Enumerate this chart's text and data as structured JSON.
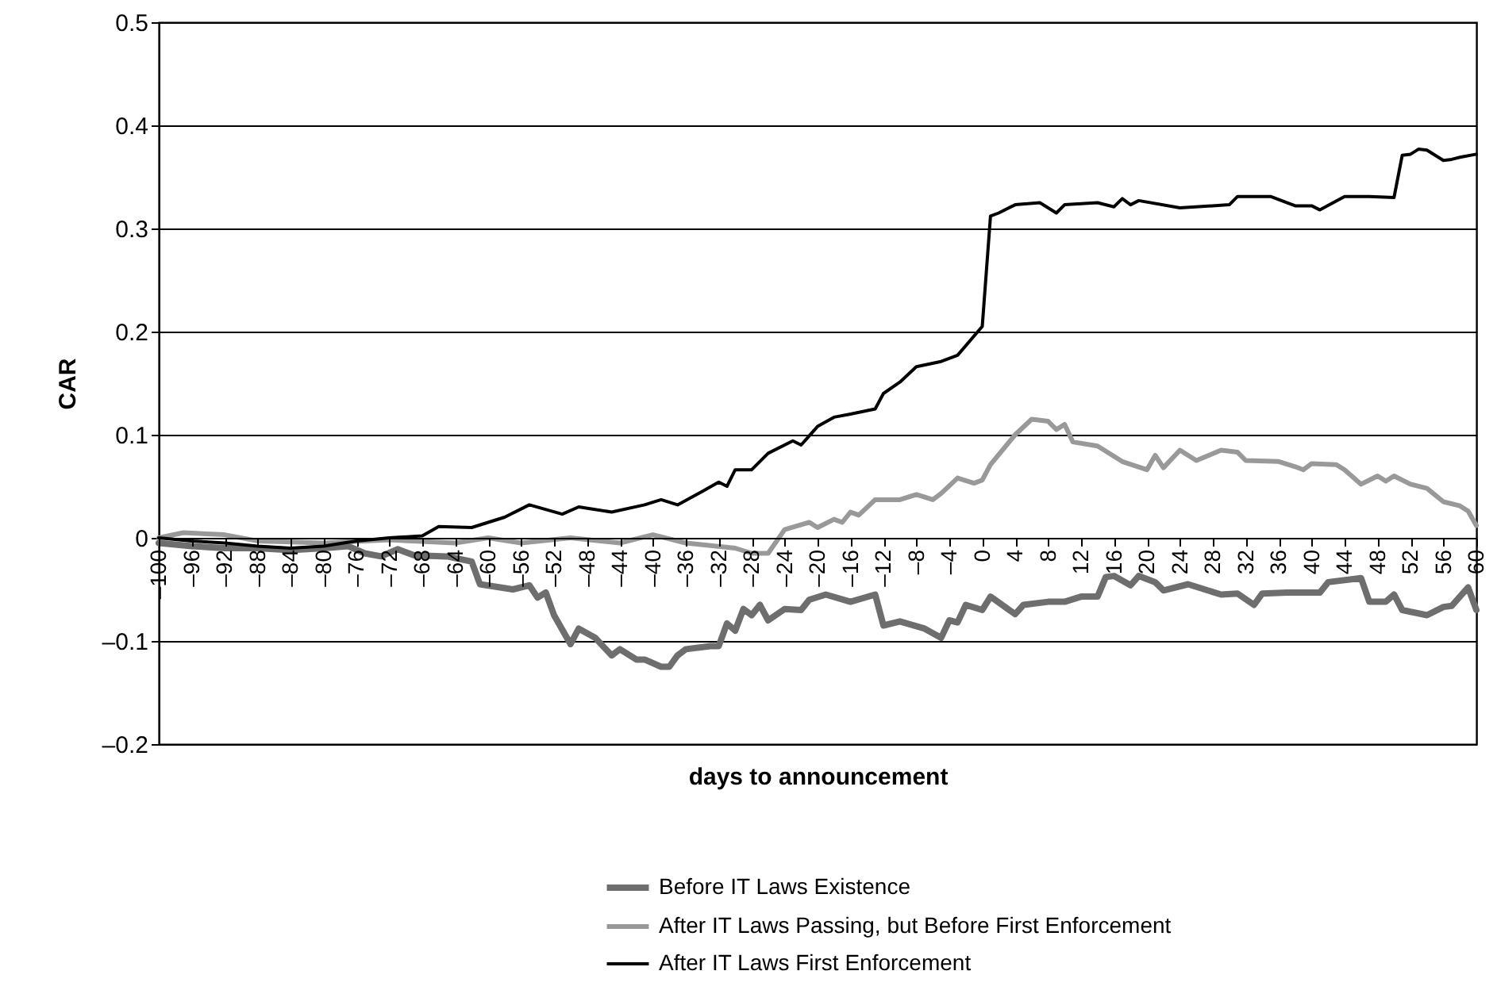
{
  "chart_data": {
    "type": "line",
    "xlabel": "days to announcement",
    "ylabel": "CAR",
    "xlim": [
      -100,
      60
    ],
    "ylim": [
      -0.2,
      0.5
    ],
    "xticks": [
      {
        "value": -100,
        "label": "–100"
      },
      {
        "value": -96,
        "label": "–96"
      },
      {
        "value": -92,
        "label": "–92"
      },
      {
        "value": -88,
        "label": "–88"
      },
      {
        "value": -84,
        "label": "–84"
      },
      {
        "value": -80,
        "label": "–80"
      },
      {
        "value": -76,
        "label": "–76"
      },
      {
        "value": -72,
        "label": "–72"
      },
      {
        "value": -68,
        "label": "–68"
      },
      {
        "value": -64,
        "label": "–64"
      },
      {
        "value": -60,
        "label": "–60"
      },
      {
        "value": -56,
        "label": "–56"
      },
      {
        "value": -52,
        "label": "–52"
      },
      {
        "value": -48,
        "label": "–48"
      },
      {
        "value": -44,
        "label": "–44"
      },
      {
        "value": -40,
        "label": "–40"
      },
      {
        "value": -36,
        "label": "–36"
      },
      {
        "value": -32,
        "label": "–32"
      },
      {
        "value": -28,
        "label": "–28"
      },
      {
        "value": -24,
        "label": "–24"
      },
      {
        "value": -20,
        "label": "–20"
      },
      {
        "value": -16,
        "label": "–16"
      },
      {
        "value": -12,
        "label": "–12"
      },
      {
        "value": -8,
        "label": "–8"
      },
      {
        "value": -4,
        "label": "–4"
      },
      0,
      4,
      8,
      12,
      16,
      20,
      24,
      28,
      32,
      36,
      40,
      44,
      48,
      52,
      56,
      60
    ],
    "yticks": [
      {
        "value": -0.2,
        "label": "–0.2"
      },
      {
        "value": -0.1,
        "label": "–0.1"
      },
      0,
      0.1,
      0.2,
      0.3,
      0.4,
      0.5
    ],
    "grid": "y",
    "legend": "bottom",
    "marker": "none",
    "line_style": "solid",
    "series": [
      {
        "name": "Before IT Laws Existence",
        "color": "#6e6e6e",
        "x": [
          -100,
          -96,
          -92,
          -88,
          -84,
          -80,
          -77,
          -75,
          -73,
          -71,
          -69,
          -65,
          -62,
          -61,
          -57,
          -55,
          -54,
          -53,
          -52,
          -50,
          -49,
          -47,
          -45,
          -44,
          -42,
          -41,
          -39,
          -38,
          -37,
          -36,
          -33,
          -32,
          -31,
          -30,
          -29,
          -28,
          -27,
          -26,
          -24,
          -22,
          -21,
          -19,
          -16,
          -13,
          -12,
          -10,
          -7,
          -5,
          -4,
          -3,
          -2,
          0,
          1,
          4,
          5,
          8,
          10,
          12,
          14,
          15,
          16,
          18,
          19,
          21,
          22,
          25,
          29,
          31,
          33,
          34,
          37,
          41,
          42,
          46,
          47,
          49,
          50,
          51,
          54,
          56,
          57,
          59,
          60
        ],
        "values": [
          -0.005,
          -0.008,
          -0.01,
          -0.01,
          -0.012,
          -0.01,
          -0.008,
          -0.015,
          -0.018,
          -0.011,
          -0.017,
          -0.018,
          -0.023,
          -0.045,
          -0.05,
          -0.046,
          -0.058,
          -0.053,
          -0.075,
          -0.103,
          -0.088,
          -0.097,
          -0.114,
          -0.108,
          -0.118,
          -0.118,
          -0.125,
          -0.125,
          -0.114,
          -0.108,
          -0.105,
          -0.105,
          -0.083,
          -0.09,
          -0.069,
          -0.075,
          -0.065,
          -0.08,
          -0.069,
          -0.07,
          -0.06,
          -0.055,
          -0.062,
          -0.055,
          -0.085,
          -0.081,
          -0.088,
          -0.097,
          -0.08,
          -0.082,
          -0.065,
          -0.07,
          -0.057,
          -0.074,
          -0.065,
          -0.062,
          -0.062,
          -0.057,
          -0.057,
          -0.038,
          -0.037,
          -0.046,
          -0.037,
          -0.043,
          -0.051,
          -0.045,
          -0.055,
          -0.054,
          -0.065,
          -0.054,
          -0.053,
          -0.053,
          -0.043,
          -0.039,
          -0.062,
          -0.062,
          -0.055,
          -0.07,
          -0.075,
          -0.067,
          -0.066,
          -0.048,
          -0.07
        ]
      },
      {
        "name": "After IT Laws Passing, but Before First Enforcement",
        "color": "#999999",
        "x": [
          -100,
          -97,
          -92,
          -88,
          -80,
          -72,
          -64,
          -60,
          -56,
          -50,
          -44,
          -40,
          -36,
          -30,
          -28,
          -26,
          -24,
          -21,
          -20,
          -18,
          -17,
          -16,
          -15,
          -13,
          -10,
          -8,
          -6,
          -5,
          -3,
          -1,
          0,
          1,
          4,
          6,
          8,
          9,
          10,
          11,
          14,
          17,
          20,
          21,
          22,
          24,
          26,
          29,
          31,
          32,
          36,
          38,
          39,
          40,
          43,
          44,
          46,
          48,
          49,
          50,
          52,
          54,
          56,
          58,
          59,
          60
        ],
        "values": [
          0,
          0.005,
          0.003,
          -0.003,
          -0.005,
          -0.002,
          -0.005,
          0,
          -0.005,
          0,
          -0.005,
          0.003,
          -0.005,
          -0.01,
          -0.015,
          -0.015,
          0.008,
          0.015,
          0.01,
          0.018,
          0.015,
          0.025,
          0.022,
          0.037,
          0.037,
          0.042,
          0.037,
          0.043,
          0.058,
          0.053,
          0.056,
          0.071,
          0.1,
          0.115,
          0.113,
          0.105,
          0.11,
          0.093,
          0.089,
          0.074,
          0.066,
          0.08,
          0.068,
          0.085,
          0.075,
          0.085,
          0.083,
          0.075,
          0.074,
          0.069,
          0.066,
          0.072,
          0.071,
          0.066,
          0.052,
          0.06,
          0.055,
          0.06,
          0.052,
          0.048,
          0.035,
          0.031,
          0.026,
          0.012
        ]
      },
      {
        "name": "After IT Laws First Enforcement",
        "color": "#000000",
        "x": [
          -100,
          -96,
          -92,
          -88,
          -84,
          -80,
          -76,
          -72,
          -68,
          -66,
          -62,
          -58,
          -55,
          -51,
          -49,
          -45,
          -41,
          -39,
          -37,
          -34,
          -32,
          -31,
          -30,
          -28,
          -26,
          -23,
          -22,
          -20,
          -18,
          -16,
          -13,
          -12,
          -10,
          -8,
          -5,
          -3,
          0,
          1,
          2,
          4,
          7,
          9,
          10,
          14,
          16,
          17,
          18,
          19,
          24,
          30,
          31,
          35,
          38,
          40,
          41,
          44,
          47,
          50,
          51,
          52,
          53,
          54,
          56,
          57,
          58,
          60
        ],
        "values": [
          0,
          -0.003,
          -0.005,
          -0.008,
          -0.01,
          -0.008,
          -0.003,
          0,
          0.002,
          0.011,
          0.01,
          0.02,
          0.032,
          0.023,
          0.03,
          0.025,
          0.032,
          0.037,
          0.032,
          0.045,
          0.054,
          0.05,
          0.066,
          0.066,
          0.082,
          0.094,
          0.09,
          0.108,
          0.117,
          0.12,
          0.125,
          0.14,
          0.151,
          0.166,
          0.171,
          0.177,
          0.205,
          0.312,
          0.315,
          0.323,
          0.325,
          0.315,
          0.323,
          0.325,
          0.321,
          0.329,
          0.323,
          0.327,
          0.32,
          0.323,
          0.331,
          0.331,
          0.322,
          0.322,
          0.318,
          0.331,
          0.331,
          0.33,
          0.371,
          0.372,
          0.377,
          0.376,
          0.366,
          0.367,
          0.369,
          0.372
        ]
      }
    ]
  }
}
